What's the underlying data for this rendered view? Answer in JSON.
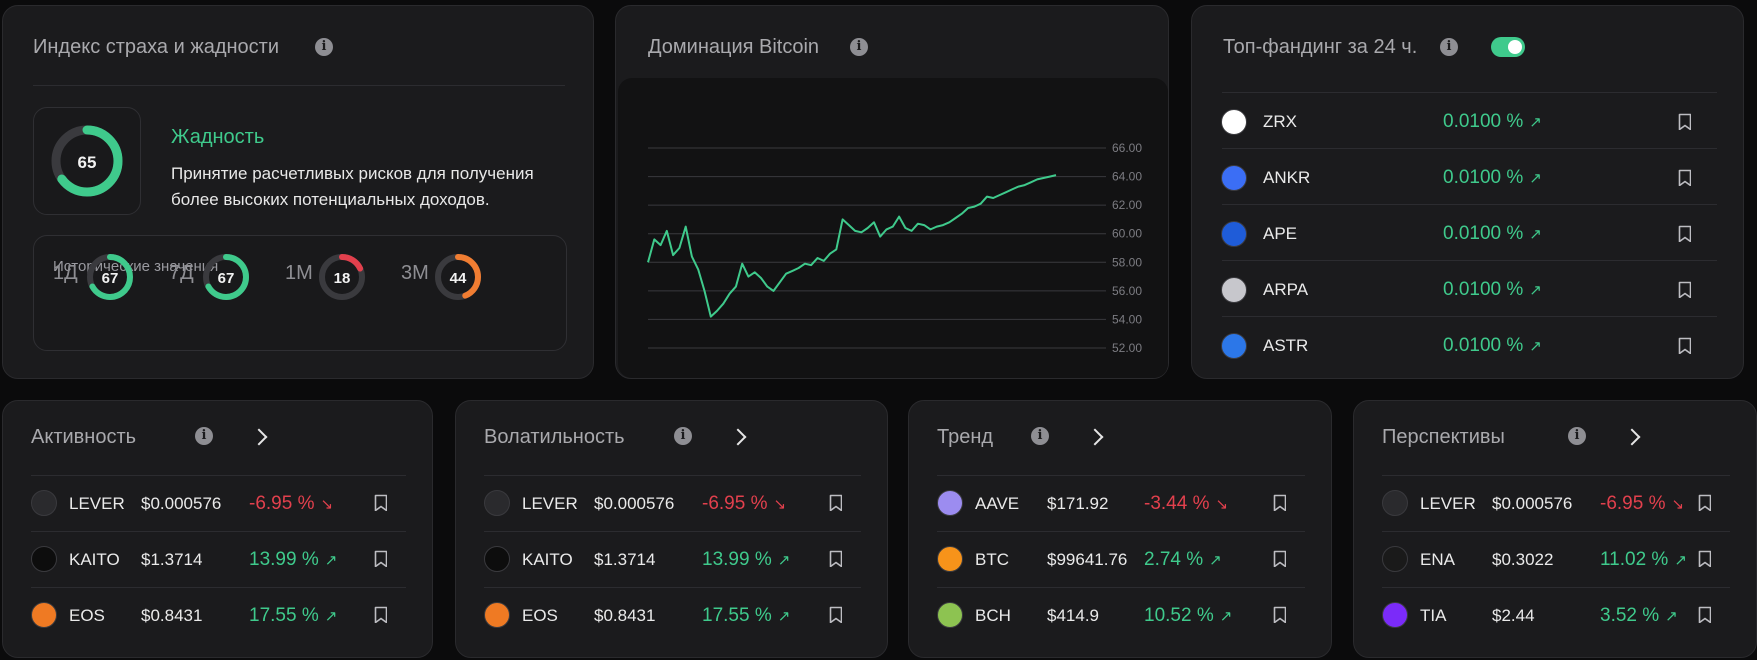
{
  "fear_greed": {
    "title": "Индекс страха и жадности",
    "value": "65",
    "value_fraction": 0.65,
    "status": "Жадность",
    "description": "Принятие расчетливых рисков для получения более высоких потенциальных доходов.",
    "history_title": "Исторические значения",
    "history": [
      {
        "label": "1Д",
        "value": "67",
        "fraction": 0.67,
        "color": "#3fca8c"
      },
      {
        "label": "7Д",
        "value": "67",
        "fraction": 0.67,
        "color": "#3fca8c"
      },
      {
        "label": "1М",
        "value": "18",
        "fraction": 0.18,
        "color": "#e2404d"
      },
      {
        "label": "3М",
        "value": "44",
        "fraction": 0.44,
        "color": "#f07d32"
      }
    ]
  },
  "btc_dominance": {
    "title": "Доминация Bitcoin",
    "chart_data": {
      "type": "line",
      "ylim": [
        52,
        66
      ],
      "yticks": [
        "66.00",
        "64.00",
        "62.00",
        "60.00",
        "58.00",
        "56.00",
        "54.00",
        "52.00"
      ],
      "grid": true,
      "color": "#3fca8c",
      "series": [
        {
          "values": [
            58.0,
            59.6,
            59.2,
            60.2,
            58.5,
            59.0,
            60.5,
            58.4,
            57.5,
            56.0,
            54.2,
            54.6,
            55.1,
            55.8,
            56.3,
            57.9,
            57.0,
            57.3,
            56.9,
            56.3,
            56.0,
            56.6,
            57.2,
            57.4,
            57.6,
            57.9,
            57.8,
            58.3,
            58.1,
            58.6,
            58.9,
            61.0,
            60.6,
            60.2,
            60.1,
            60.4,
            60.8,
            59.8,
            60.3,
            60.5,
            61.2,
            60.4,
            60.2,
            60.7,
            60.6,
            60.3,
            60.5,
            60.6,
            60.8,
            61.1,
            61.4,
            61.8,
            61.9,
            62.1,
            62.6,
            62.5,
            62.7,
            62.9,
            63.1,
            63.3,
            63.4,
            63.6,
            63.8,
            63.9,
            64.0,
            64.1
          ]
        }
      ]
    }
  },
  "funding": {
    "title": "Топ-фандинг за 24 ч.",
    "rows": [
      {
        "symbol": "ZRX",
        "rate": "0.0100 %",
        "icon": "zrx-icon",
        "color": "#ffffff"
      },
      {
        "symbol": "ANKR",
        "rate": "0.0100 %",
        "icon": "ankr-icon",
        "color": "#3b6ef5"
      },
      {
        "symbol": "APE",
        "rate": "0.0100 %",
        "icon": "ape-icon",
        "color": "#1f5cd8"
      },
      {
        "symbol": "ARPA",
        "rate": "0.0100 %",
        "icon": "arpa-icon",
        "color": "#c7c7cc"
      },
      {
        "symbol": "ASTR",
        "rate": "0.0100 %",
        "icon": "astr-icon",
        "color": "#2c77e8"
      }
    ]
  },
  "lists": [
    {
      "title": "Активность",
      "rows": [
        {
          "symbol": "LEVER",
          "price": "$0.000576",
          "change": "-6.95 %",
          "dir": "down",
          "icon": "lever-icon",
          "color": "#2a2a2d"
        },
        {
          "symbol": "KAITO",
          "price": "$1.3714",
          "change": "13.99 %",
          "dir": "up",
          "icon": "kaito-icon",
          "color": "#0d0d0d"
        },
        {
          "symbol": "EOS",
          "price": "$0.8431",
          "change": "17.55 %",
          "dir": "up",
          "icon": "eos-icon",
          "color": "#ef7a23"
        }
      ]
    },
    {
      "title": "Волатильность",
      "rows": [
        {
          "symbol": "LEVER",
          "price": "$0.000576",
          "change": "-6.95 %",
          "dir": "down",
          "icon": "lever-icon",
          "color": "#2a2a2d"
        },
        {
          "symbol": "KAITO",
          "price": "$1.3714",
          "change": "13.99 %",
          "dir": "up",
          "icon": "kaito-icon",
          "color": "#0d0d0d"
        },
        {
          "symbol": "EOS",
          "price": "$0.8431",
          "change": "17.55 %",
          "dir": "up",
          "icon": "eos-icon",
          "color": "#ef7a23"
        }
      ]
    },
    {
      "title": "Тренд",
      "rows": [
        {
          "symbol": "AAVE",
          "price": "$171.92",
          "change": "-3.44 %",
          "dir": "down",
          "icon": "aave-icon",
          "color": "#9c8cf0"
        },
        {
          "symbol": "BTC",
          "price": "$99641.76",
          "change": "2.74 %",
          "dir": "up",
          "icon": "btc-icon",
          "color": "#f7931a"
        },
        {
          "symbol": "BCH",
          "price": "$414.9",
          "change": "10.52 %",
          "dir": "up",
          "icon": "bch-icon",
          "color": "#8dc351"
        }
      ]
    },
    {
      "title": "Перспективы",
      "rows": [
        {
          "symbol": "LEVER",
          "price": "$0.000576",
          "change": "-6.95 %",
          "dir": "down",
          "icon": "lever-icon",
          "color": "#2a2a2d"
        },
        {
          "symbol": "ENA",
          "price": "$0.3022",
          "change": "11.02 %",
          "dir": "up",
          "icon": "ena-icon",
          "color": "#1a1a1a"
        },
        {
          "symbol": "TIA",
          "price": "$2.44",
          "change": "3.52 %",
          "dir": "up",
          "icon": "tia-icon",
          "color": "#7b2bf9"
        }
      ]
    }
  ]
}
